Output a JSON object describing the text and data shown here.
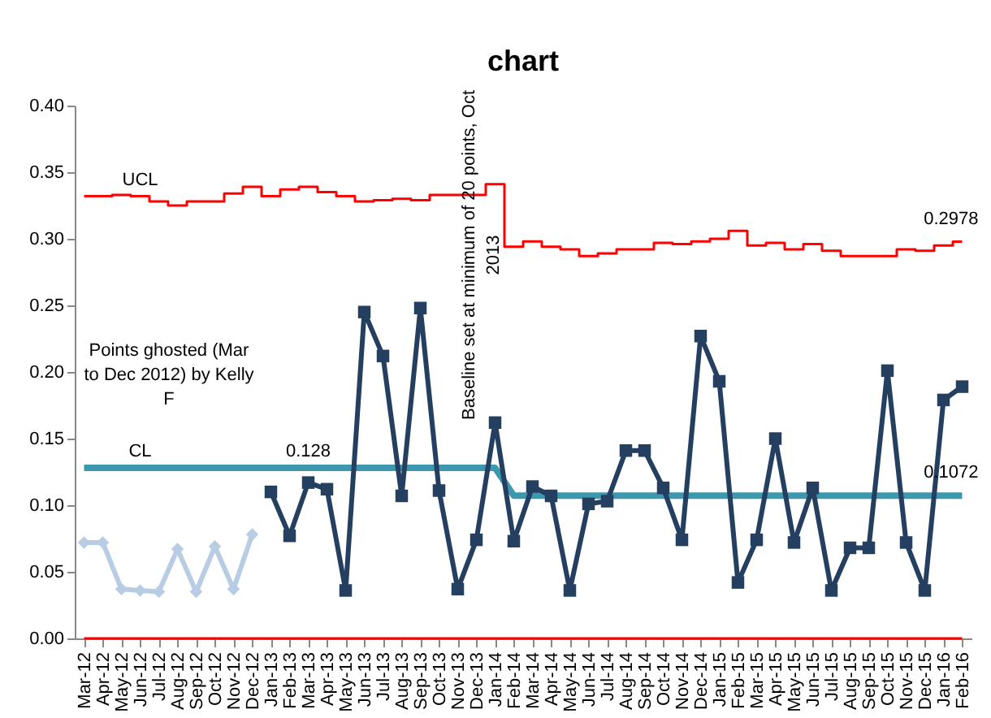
{
  "chart_data": {
    "type": "line",
    "title": "chart",
    "categories": [
      "Mar-12",
      "Apr-12",
      "May-12",
      "Jun-12",
      "Jul-12",
      "Aug-12",
      "Sep-12",
      "Oct-12",
      "Nov-12",
      "Dec-12",
      "Jan-13",
      "Feb-13",
      "Mar-13",
      "Apr-13",
      "May-13",
      "Jun-13",
      "Jul-13",
      "Aug-13",
      "Sep-13",
      "Oct-13",
      "Nov-13",
      "Dec-13",
      "Jan-14",
      "Feb-14",
      "Mar-14",
      "Apr-14",
      "May-14",
      "Jun-14",
      "Jul-14",
      "Aug-14",
      "Sep-14",
      "Oct-14",
      "Nov-14",
      "Dec-14",
      "Jan-15",
      "Feb-15",
      "Mar-15",
      "Apr-15",
      "May-15",
      "Jun-15",
      "Jul-15",
      "Aug-15",
      "Sep-15",
      "Oct-15",
      "Nov-15",
      "Dec-15",
      "Jan-16",
      "Feb-16"
    ],
    "series": [
      {
        "name": "UCL",
        "type": "step",
        "color": "#ff0000",
        "marker": "none",
        "values": [
          0.332,
          0.332,
          0.333,
          0.332,
          0.328,
          0.325,
          0.328,
          0.328,
          0.334,
          0.339,
          0.332,
          0.337,
          0.339,
          0.335,
          0.332,
          0.328,
          0.329,
          0.33,
          0.329,
          0.333,
          0.333,
          0.333,
          0.341,
          0.294,
          0.298,
          0.294,
          0.292,
          0.287,
          0.289,
          0.292,
          0.292,
          0.297,
          0.296,
          0.298,
          0.3,
          0.306,
          0.295,
          0.297,
          0.292,
          0.296,
          0.291,
          0.287,
          0.287,
          0.287,
          0.292,
          0.291,
          0.295,
          0.2978
        ]
      },
      {
        "type": "step",
        "color": "#ff0000",
        "marker": "none",
        "values": [
          0,
          0,
          0,
          0,
          0,
          0,
          0,
          0,
          0,
          0,
          0,
          0,
          0,
          0,
          0,
          0,
          0,
          0,
          0,
          0,
          0,
          0,
          0,
          0,
          0,
          0,
          0,
          0,
          0,
          0,
          0,
          0,
          0,
          0,
          0,
          0,
          0,
          0,
          0,
          0,
          0,
          0,
          0,
          0,
          0,
          0,
          0,
          0
        ]
      },
      {
        "name": "CL",
        "color": "#3d97ae",
        "marker": "none",
        "values": [
          0.128,
          0.128,
          0.128,
          0.128,
          0.128,
          0.128,
          0.128,
          0.128,
          0.128,
          0.128,
          0.128,
          0.128,
          0.128,
          0.128,
          0.128,
          0.128,
          0.128,
          0.128,
          0.128,
          0.128,
          0.128,
          0.128,
          0.128,
          0.1072,
          0.1072,
          0.1072,
          0.1072,
          0.1072,
          0.1072,
          0.1072,
          0.1072,
          0.1072,
          0.1072,
          0.1072,
          0.1072,
          0.1072,
          0.1072,
          0.1072,
          0.1072,
          0.1072,
          0.1072,
          0.1072,
          0.1072,
          0.1072,
          0.1072,
          0.1072,
          0.1072,
          0.1072
        ]
      },
      {
        "color": "#b8cce4",
        "marker": "diamond",
        "values": [
          0.072,
          0.072,
          0.037,
          0.036,
          0.035,
          0.067,
          0.035,
          0.069,
          0.037,
          0.078,
          null,
          null,
          null,
          null,
          null,
          null,
          null,
          null,
          null,
          null,
          null,
          null,
          null,
          null,
          null,
          null,
          null,
          null,
          null,
          null,
          null,
          null,
          null,
          null,
          null,
          null,
          null,
          null,
          null,
          null,
          null,
          null,
          null,
          null,
          null,
          null,
          null,
          null
        ]
      },
      {
        "color": "#243f60",
        "marker": "square",
        "values": [
          null,
          null,
          null,
          null,
          null,
          null,
          null,
          null,
          null,
          null,
          0.11,
          0.077,
          0.117,
          0.112,
          0.036,
          0.245,
          0.212,
          0.107,
          0.248,
          0.111,
          0.037,
          0.074,
          0.162,
          0.073,
          0.114,
          0.107,
          0.036,
          0.101,
          0.103,
          0.141,
          0.141,
          0.113,
          0.074,
          0.227,
          0.193,
          0.042,
          0.074,
          0.15,
          0.072,
          0.113,
          0.036,
          0.068,
          0.068,
          0.201,
          0.072,
          0.036,
          0.179,
          0.189
        ]
      }
    ],
    "ylim": [
      0,
      0.4
    ],
    "yticks": [
      {
        "value": 0,
        "label": "0.00"
      },
      {
        "value": 0.05,
        "label": "0.05"
      },
      {
        "value": 0.1,
        "label": "0.10"
      },
      {
        "value": 0.15,
        "label": "0.15"
      },
      {
        "value": 0.2,
        "label": "0.20"
      },
      {
        "value": 0.25,
        "label": "0.25"
      },
      {
        "value": 0.3,
        "label": "0.30"
      },
      {
        "value": 0.35,
        "label": "0.35"
      },
      {
        "value": 0.4,
        "label": "0.40"
      }
    ],
    "grid": false,
    "annotations": [
      {
        "text": "0.128",
        "x": "Mar-13",
        "y": 0.128
      },
      {
        "text": "0.2978",
        "x": "Feb-16",
        "y": 0.2978
      },
      {
        "text": "0.1072",
        "x": "Feb-16",
        "y": 0.1072
      },
      "Points ghosted (Mar to Dec 2012) by Kelly F",
      "Baseline set at minimum of 20 points, Oct 2013"
    ]
  }
}
